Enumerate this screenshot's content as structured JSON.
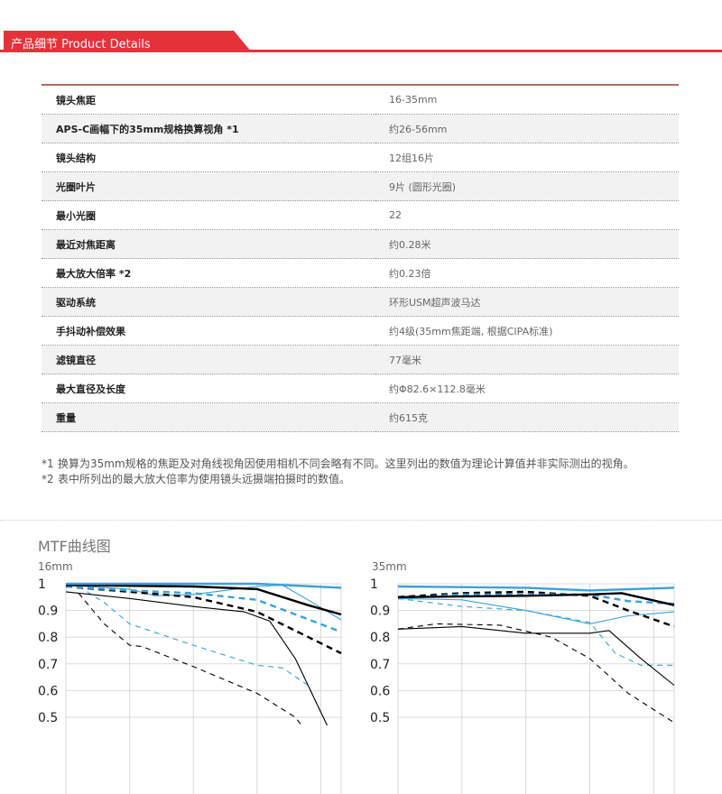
{
  "header": {
    "title": "产品细节 Product Details",
    "accent": "#e5323a"
  },
  "specs": [
    {
      "label": "镜头焦距",
      "value": "16-35mm"
    },
    {
      "label": "APS-C画幅下的35mm规格换算视角 *1",
      "value": "约26-56mm"
    },
    {
      "label": "镜头结构",
      "value": "12组16片"
    },
    {
      "label": "光圈叶片",
      "value": "9片 (圆形光圈)"
    },
    {
      "label": "最小光圈",
      "value": "22"
    },
    {
      "label": "最近对焦距离",
      "value": "约0.28米"
    },
    {
      "label": "最大放大倍率 *2",
      "value": "约0.23倍"
    },
    {
      "label": "驱动系统",
      "value": "环形USM超声波马达"
    },
    {
      "label": "手抖动补偿效果",
      "value": "约4级(35mm焦距端, 根据CIPA标准)"
    },
    {
      "label": "滤镜直径",
      "value": "77毫米"
    },
    {
      "label": "最大直径及长度",
      "value": "约Φ82.6×112.8毫米"
    },
    {
      "label": "重量",
      "value": "约615克"
    }
  ],
  "notes": [
    {
      "mark": "*1",
      "text": "换算为35mm规格的焦距及对角线视角因使用相机不同会略有不同。这里列出的数值为理论计算值并非实际测出的视角。"
    },
    {
      "mark": "*2",
      "text": "表中所列出的最大放大倍率为使用镜头远摄端拍摄时的数值。"
    }
  ],
  "mtf_title": "MTF曲线图",
  "chart_data": [
    {
      "type": "line",
      "title": "16mm",
      "xlim": [
        0,
        21.6
      ],
      "ylim": [
        0.4,
        1
      ],
      "x_grid": [
        5,
        10,
        15,
        20
      ],
      "yticks": [
        {
          "v": 1,
          "l": "1"
        },
        {
          "v": 0.9,
          "l": "0.9"
        },
        {
          "v": 0.8,
          "l": "0.8"
        },
        {
          "v": 0.7,
          "l": "0.7"
        },
        {
          "v": 0.6,
          "l": "0.6"
        },
        {
          "v": 0.5,
          "l": "0.5"
        }
      ],
      "series": [
        {
          "color": "#000000",
          "style": "thin-dashed",
          "points": [
            [
              1,
              0.965
            ],
            [
              3,
              0.85
            ],
            [
              5,
              0.77
            ],
            [
              6,
              0.765
            ],
            [
              10,
              0.69
            ],
            [
              15,
              0.59
            ],
            [
              18,
              0.5
            ],
            [
              18.5,
              0.47
            ]
          ]
        },
        {
          "color": "#3aa0dc",
          "style": "thin-dashed",
          "points": [
            [
              1,
              0.99
            ],
            [
              3,
              0.93
            ],
            [
              5,
              0.85
            ],
            [
              10,
              0.77
            ],
            [
              15,
              0.695
            ],
            [
              17,
              0.685
            ],
            [
              19,
              0.62
            ],
            [
              20.4,
              0.48
            ]
          ]
        },
        {
          "color": "#000000",
          "style": "thin-solid",
          "points": [
            [
              0,
              0.97
            ],
            [
              5,
              0.945
            ],
            [
              10,
              0.915
            ],
            [
              14,
              0.895
            ],
            [
              16,
              0.86
            ],
            [
              18,
              0.72
            ],
            [
              20,
              0.52
            ],
            [
              20.5,
              0.47
            ]
          ]
        },
        {
          "color": "#3aa0dc",
          "style": "thin-solid",
          "points": [
            [
              0,
              0.995
            ],
            [
              5,
              0.98
            ],
            [
              7,
              0.955
            ],
            [
              10,
              0.96
            ],
            [
              15,
              0.99
            ],
            [
              17,
              0.995
            ],
            [
              19,
              0.94
            ],
            [
              21.6,
              0.865
            ]
          ]
        },
        {
          "color": "#000000",
          "style": "thick-dashed",
          "points": [
            [
              0,
              0.99
            ],
            [
              5,
              0.97
            ],
            [
              10,
              0.95
            ],
            [
              15,
              0.895
            ],
            [
              21.6,
              0.74
            ]
          ]
        },
        {
          "color": "#3aa0dc",
          "style": "thick-dashed",
          "points": [
            [
              0,
              0.99
            ],
            [
              5,
              0.975
            ],
            [
              10,
              0.965
            ],
            [
              15,
              0.94
            ],
            [
              21.6,
              0.82
            ]
          ]
        },
        {
          "color": "#000000",
          "style": "thick-solid",
          "points": [
            [
              0,
              0.995
            ],
            [
              10,
              0.99
            ],
            [
              15,
              0.98
            ],
            [
              19,
              0.92
            ],
            [
              21.6,
              0.885
            ]
          ]
        },
        {
          "color": "#3aa0dc",
          "style": "thick-solid",
          "points": [
            [
              0,
              1
            ],
            [
              15,
              1
            ],
            [
              21.6,
              0.985
            ]
          ]
        }
      ]
    },
    {
      "type": "line",
      "title": "35mm",
      "xlim": [
        0,
        21.6
      ],
      "ylim": [
        0.4,
        1
      ],
      "x_grid": [
        5,
        10,
        15,
        20
      ],
      "yticks": [
        {
          "v": 1,
          "l": "1"
        },
        {
          "v": 0.9,
          "l": "0.9"
        },
        {
          "v": 0.8,
          "l": "0.8"
        },
        {
          "v": 0.7,
          "l": "0.7"
        },
        {
          "v": 0.6,
          "l": "0.6"
        },
        {
          "v": 0.5,
          "l": "0.5"
        }
      ],
      "series": [
        {
          "color": "#000000",
          "style": "thin-dashed",
          "points": [
            [
              0,
              0.83
            ],
            [
              3,
              0.85
            ],
            [
              8,
              0.845
            ],
            [
              12,
              0.8
            ],
            [
              15,
              0.72
            ],
            [
              18,
              0.59
            ],
            [
              21.6,
              0.48
            ]
          ]
        },
        {
          "color": "#3aa0dc",
          "style": "thin-dashed",
          "points": [
            [
              0,
              0.945
            ],
            [
              5,
              0.915
            ],
            [
              10,
              0.9
            ],
            [
              15,
              0.855
            ],
            [
              17,
              0.74
            ],
            [
              19,
              0.695
            ],
            [
              21.6,
              0.695
            ]
          ]
        },
        {
          "color": "#000000",
          "style": "thin-solid",
          "points": [
            [
              0,
              0.83
            ],
            [
              5,
              0.84
            ],
            [
              10,
              0.815
            ],
            [
              15,
              0.815
            ],
            [
              16.5,
              0.825
            ],
            [
              19,
              0.72
            ],
            [
              21.6,
              0.62
            ]
          ]
        },
        {
          "color": "#3aa0dc",
          "style": "thin-solid",
          "points": [
            [
              0,
              0.945
            ],
            [
              5,
              0.94
            ],
            [
              10,
              0.9
            ],
            [
              15,
              0.85
            ],
            [
              18,
              0.88
            ],
            [
              21.6,
              0.895
            ]
          ]
        },
        {
          "color": "#000000",
          "style": "thick-dashed",
          "points": [
            [
              0,
              0.95
            ],
            [
              5,
              0.965
            ],
            [
              10,
              0.97
            ],
            [
              15,
              0.955
            ],
            [
              18,
              0.9
            ],
            [
              21.6,
              0.84
            ]
          ]
        },
        {
          "color": "#3aa0dc",
          "style": "thick-dashed",
          "points": [
            [
              0,
              0.945
            ],
            [
              5,
              0.96
            ],
            [
              15,
              0.96
            ],
            [
              18,
              0.935
            ],
            [
              21.6,
              0.925
            ]
          ]
        },
        {
          "color": "#000000",
          "style": "thick-solid",
          "points": [
            [
              0,
              0.95
            ],
            [
              10,
              0.955
            ],
            [
              15,
              0.96
            ],
            [
              17.5,
              0.965
            ],
            [
              21.6,
              0.92
            ]
          ]
        },
        {
          "color": "#3aa0dc",
          "style": "thick-solid",
          "points": [
            [
              0,
              0.99
            ],
            [
              10,
              0.985
            ],
            [
              15,
              0.975
            ],
            [
              21.6,
              0.985
            ]
          ]
        }
      ]
    }
  ]
}
